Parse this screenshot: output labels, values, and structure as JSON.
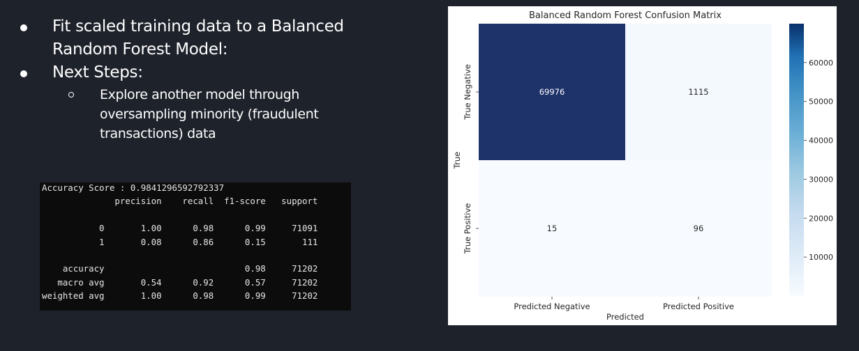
{
  "bullets": [
    {
      "lines": [
        "Fit scaled training data to a Balanced",
        "Random Forest Model:"
      ]
    },
    {
      "lines": [
        "Next Steps:"
      ],
      "sub": [
        {
          "lines": [
            "Explore another model through",
            "oversampling minority (fraudulent",
            "transactions) data"
          ]
        }
      ]
    }
  ],
  "report": {
    "lines": [
      "Accuracy Score : 0.9841296592792337",
      "              precision    recall  f1-score   support",
      "",
      "           0       1.00      0.98      0.99     71091",
      "           1       0.08      0.86      0.15       111",
      "",
      "    accuracy                           0.98     71202",
      "   macro avg       0.54      0.92      0.57     71202",
      "weighted avg       1.00      0.98      0.99     71202"
    ]
  },
  "chart_data": {
    "type": "heatmap",
    "title": "Balanced Random Forest Confusion Matrix",
    "xlabel": "Predicted",
    "ylabel": "True",
    "x_categories": [
      "Predicted Negative",
      "Predicted Positive"
    ],
    "y_categories": [
      "True Negative",
      "True Positive"
    ],
    "values": [
      [
        69976,
        1115
      ],
      [
        15,
        96
      ]
    ],
    "colormap": "Blues",
    "colorbar": {
      "ticks": [
        10000,
        20000,
        30000,
        40000,
        50000,
        60000
      ],
      "range": [
        15,
        69976
      ]
    },
    "colors": {
      "low": "#f7fbff",
      "high": "#08306b",
      "dark_cell": "#1f336b"
    }
  }
}
